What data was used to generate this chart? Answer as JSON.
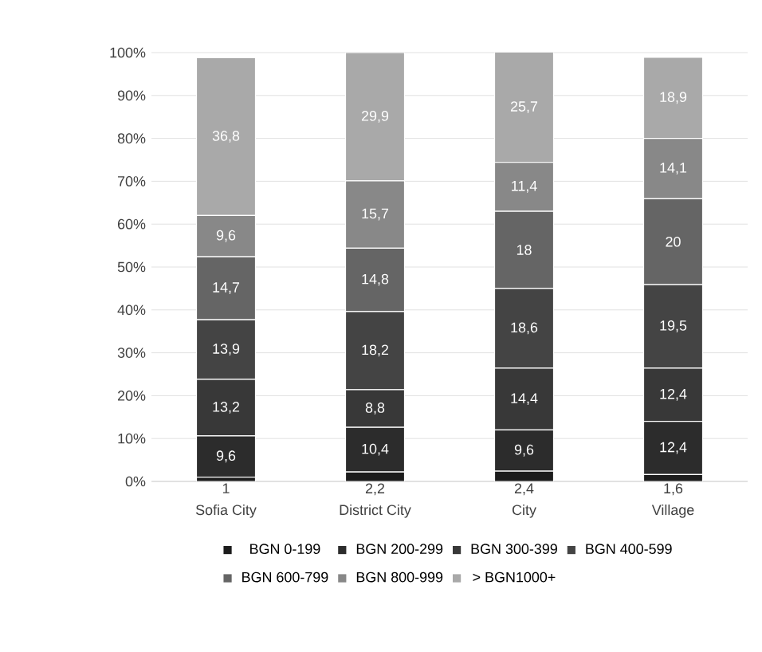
{
  "chart_data": {
    "type": "bar",
    "stacked": true,
    "categories": [
      "Sofia City",
      "District City",
      "City",
      "Village"
    ],
    "series": [
      {
        "name": "BGN 0-199",
        "color": "#1c1c1c",
        "values": [
          1,
          2.2,
          2.4,
          1.6
        ],
        "value_labels": [
          "1",
          "2,2",
          "2,4",
          "1,6"
        ]
      },
      {
        "name": "BGN 200-299",
        "color": "#2c2c2c",
        "values": [
          9.6,
          10.4,
          9.6,
          12.4
        ],
        "value_labels": [
          "9,6",
          "10,4",
          "9,6",
          "12,4"
        ]
      },
      {
        "name": "BGN 300-399",
        "color": "#383838",
        "values": [
          13.2,
          8.8,
          14.4,
          12.4
        ],
        "value_labels": [
          "13,2",
          "8,8",
          "14,4",
          "12,4"
        ]
      },
      {
        "name": "BGN 400-599",
        "color": "#444444",
        "values": [
          13.9,
          18.2,
          18.6,
          19.5
        ],
        "value_labels": [
          "13,9",
          "18,2",
          "18,6",
          "19,5"
        ]
      },
      {
        "name": "BGN 600-799",
        "color": "#656565",
        "values": [
          14.7,
          14.8,
          18,
          20
        ],
        "value_labels": [
          "14,7",
          "14,8",
          "18",
          "20"
        ]
      },
      {
        "name": "BGN 800-999",
        "color": "#888888",
        "values": [
          9.6,
          15.7,
          11.4,
          14.1
        ],
        "value_labels": [
          "9,6",
          "15,7",
          "11,4",
          "14,1"
        ]
      },
      {
        "name": "> BGN1000+",
        "color": "#a9a9a9",
        "values": [
          36.8,
          29.9,
          25.7,
          18.9
        ],
        "value_labels": [
          "36,8",
          "29,9",
          "25,7",
          "18,9"
        ]
      }
    ],
    "ylim": [
      0,
      100
    ],
    "yticks": [
      {
        "value": 0,
        "label": "0%"
      },
      {
        "value": 10,
        "label": "10%"
      },
      {
        "value": 20,
        "label": "20%"
      },
      {
        "value": 30,
        "label": "30%"
      },
      {
        "value": 40,
        "label": "40%"
      },
      {
        "value": 50,
        "label": "50%"
      },
      {
        "value": 60,
        "label": "60%"
      },
      {
        "value": 70,
        "label": "70%"
      },
      {
        "value": 80,
        "label": "80%"
      },
      {
        "value": 90,
        "label": "90%"
      },
      {
        "value": 100,
        "label": "100%"
      }
    ],
    "grid": "y",
    "legend": "bottom"
  }
}
